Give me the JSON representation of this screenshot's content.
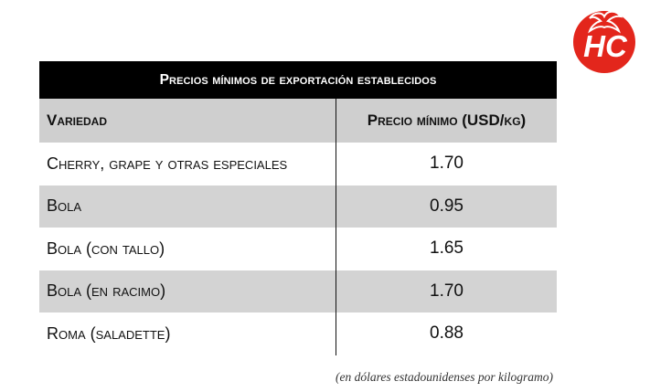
{
  "logo": {
    "text": "HC",
    "icon": "tomato-logo-icon",
    "color": "#e3261c"
  },
  "table": {
    "title": "Precios mínimos de exportación establecidos",
    "headers": [
      "Variedad",
      "Precio mínimo (USD/kg)"
    ],
    "rows": [
      [
        "Cherry, grape y otras especiales",
        "1.70"
      ],
      [
        "Bola",
        "0.95"
      ],
      [
        "Bola (con tallo)",
        "1.65"
      ],
      [
        "Bola (en racimo)",
        "1.70"
      ],
      [
        "Roma (saladette)",
        "0.88"
      ]
    ]
  },
  "note": "(en dólares estadounidenses por kilogramo)",
  "colors": {
    "title_bg": "#000000",
    "title_text": "#ffffff",
    "shade": "#d3d3d3"
  }
}
